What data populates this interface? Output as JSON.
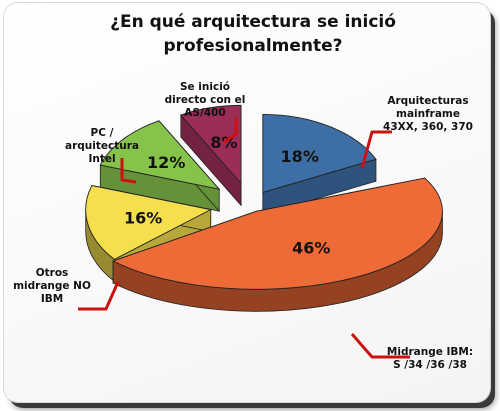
{
  "chart_data": {
    "type": "pie",
    "title": "¿En qué arquitectura se inició profesionalmente?",
    "title_lines": [
      "¿En qué arquitectura se inició",
      "profesionalmente?"
    ],
    "slices": [
      {
        "label": "Arquitecturas mainframe 43XX, 360, 370",
        "label_lines": [
          "Arquitecturas",
          "mainframe",
          "43XX, 360, 370"
        ],
        "value": 18,
        "value_label": "18%",
        "color": "#3d6fa6"
      },
      {
        "label": "Midrange IBM: S /34 /36 /38",
        "label_lines": [
          "Midrange IBM:",
          "S /34 /36 /38"
        ],
        "value": 46,
        "value_label": "46%",
        "color": "#ee6a36"
      },
      {
        "label": "Otros midrange NO IBM",
        "label_lines": [
          "Otros",
          "midrange NO",
          "IBM"
        ],
        "value": 16,
        "value_label": "16%",
        "color": "#f5df4d"
      },
      {
        "label": "PC / arquitectura Intel",
        "label_lines": [
          "PC /",
          "arquitectura",
          "Intel"
        ],
        "value": 12,
        "value_label": "12%",
        "color": "#86c34a"
      },
      {
        "label": "Se inició directo con el AS/400",
        "label_lines": [
          "Se inició",
          "directo con el",
          "AS/400"
        ],
        "value": 8,
        "value_label": "8%",
        "color": "#9b2d56"
      }
    ],
    "style": "exploded 3d pie",
    "legend": "none",
    "leader_line_color": "#cc1111"
  }
}
